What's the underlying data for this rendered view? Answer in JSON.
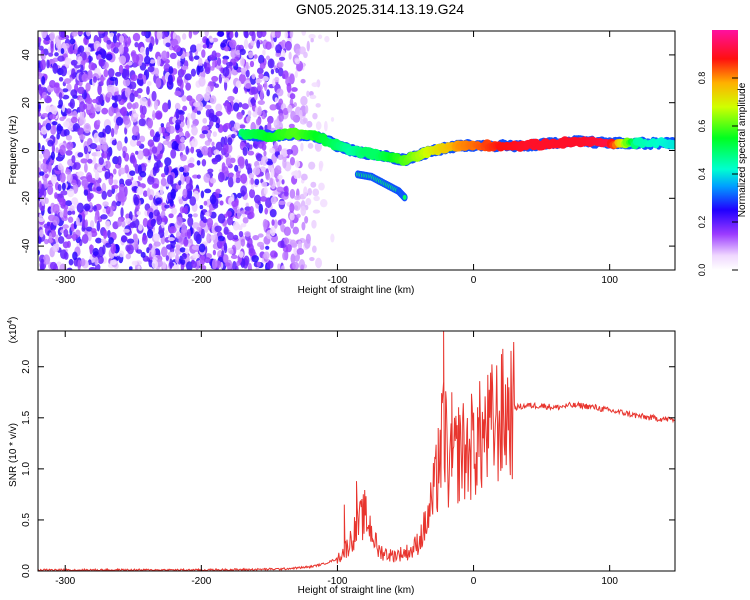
{
  "title": "GN05.2025.314.13.19.G24",
  "chart_data": [
    {
      "type": "heatmap",
      "xlabel": "Height of straight line (km)",
      "ylabel": "Frequency (Hz)",
      "xlim": [
        -320,
        148
      ],
      "ylim": [
        -50,
        50
      ],
      "xticks": [
        -300,
        -200,
        -100,
        0,
        100
      ],
      "yticks": [
        -40,
        -20,
        0,
        20,
        40
      ],
      "colorbar": {
        "label": "Normalized spectral amplitude",
        "range": [
          0,
          1
        ],
        "ticks": [
          "0.0",
          "0.2",
          "0.4",
          "0.6",
          "0.8"
        ],
        "tick_values": [
          0.0,
          0.2,
          0.4,
          0.6,
          0.8
        ]
      },
      "features": {
        "noise_region_x": [
          -320,
          -120
        ],
        "ridge": {
          "x": [
            -170,
            -150,
            -130,
            -115,
            -100,
            -90,
            -80,
            -70,
            -60,
            -50,
            -40,
            -30,
            -20,
            -10,
            0,
            20,
            40,
            60,
            80,
            100,
            120,
            148
          ],
          "y": [
            7,
            6,
            7,
            6,
            2,
            0,
            -1,
            -2,
            -3,
            -4,
            -2,
            0,
            1,
            2,
            2,
            2,
            2,
            3,
            4,
            3,
            3,
            3
          ],
          "amplitude": [
            0.5,
            0.55,
            0.6,
            0.55,
            0.5,
            0.45,
            0.5,
            0.5,
            0.55,
            0.6,
            0.65,
            0.7,
            0.75,
            0.8,
            0.82,
            0.88,
            0.9,
            0.9,
            0.9,
            0.92,
            0.45,
            0.4
          ]
        },
        "secondary_branch": {
          "x": [
            -85,
            -75,
            -65,
            -55,
            -50
          ],
          "y": [
            -10,
            -11,
            -14,
            -17,
            -20
          ]
        }
      }
    },
    {
      "type": "line",
      "xlabel": "Height of straight line (km)",
      "ylabel": "SNR (10 * v/v)",
      "y_scale_label": "(x10",
      "y_scale_exp": "4",
      "y_scale_suffix": ")",
      "xlim": [
        -320,
        148
      ],
      "ylim": [
        0,
        2.35
      ],
      "xticks": [
        -300,
        -200,
        -100,
        0,
        100
      ],
      "yticks": [
        "0.0",
        "0.5",
        "1.0",
        "1.5",
        "2.0"
      ],
      "ytick_values": [
        0,
        0.5,
        1.0,
        1.5,
        2.0
      ],
      "color": "#e8352e",
      "series": [
        {
          "name": "SNR",
          "x": [
            -320,
            -250,
            -200,
            -160,
            -140,
            -120,
            -110,
            -100,
            -92,
            -85,
            -80,
            -75,
            -70,
            -60,
            -50,
            -45,
            -40,
            -35,
            -30,
            -25,
            -22,
            -20,
            -18,
            -15,
            -10,
            -5,
            0,
            5,
            10,
            15,
            20,
            25,
            30,
            40,
            50,
            60,
            70,
            80,
            90,
            100,
            110,
            120,
            130,
            148
          ],
          "y": [
            0.01,
            0.01,
            0.01,
            0.015,
            0.02,
            0.04,
            0.07,
            0.12,
            0.25,
            0.45,
            0.55,
            0.4,
            0.2,
            0.15,
            0.18,
            0.2,
            0.3,
            0.45,
            0.7,
            1.05,
            1.4,
            1.25,
            0.95,
            1.05,
            1.2,
            1.15,
            1.25,
            1.3,
            1.35,
            1.45,
            1.5,
            1.55,
            1.6,
            1.62,
            1.62,
            1.6,
            1.62,
            1.62,
            1.6,
            1.57,
            1.55,
            1.52,
            1.5,
            1.48
          ]
        }
      ],
      "peaks": [
        {
          "x": -22,
          "y": 2.35
        },
        {
          "x": -95,
          "y": 0.65
        },
        {
          "x": -86,
          "y": 0.88
        },
        {
          "x": -26,
          "y": 1.4
        },
        {
          "x": -16,
          "y": 1.75
        },
        {
          "x": -8,
          "y": 1.5
        },
        {
          "x": 3,
          "y": 1.45
        },
        {
          "x": 12,
          "y": 1.5
        }
      ]
    }
  ]
}
